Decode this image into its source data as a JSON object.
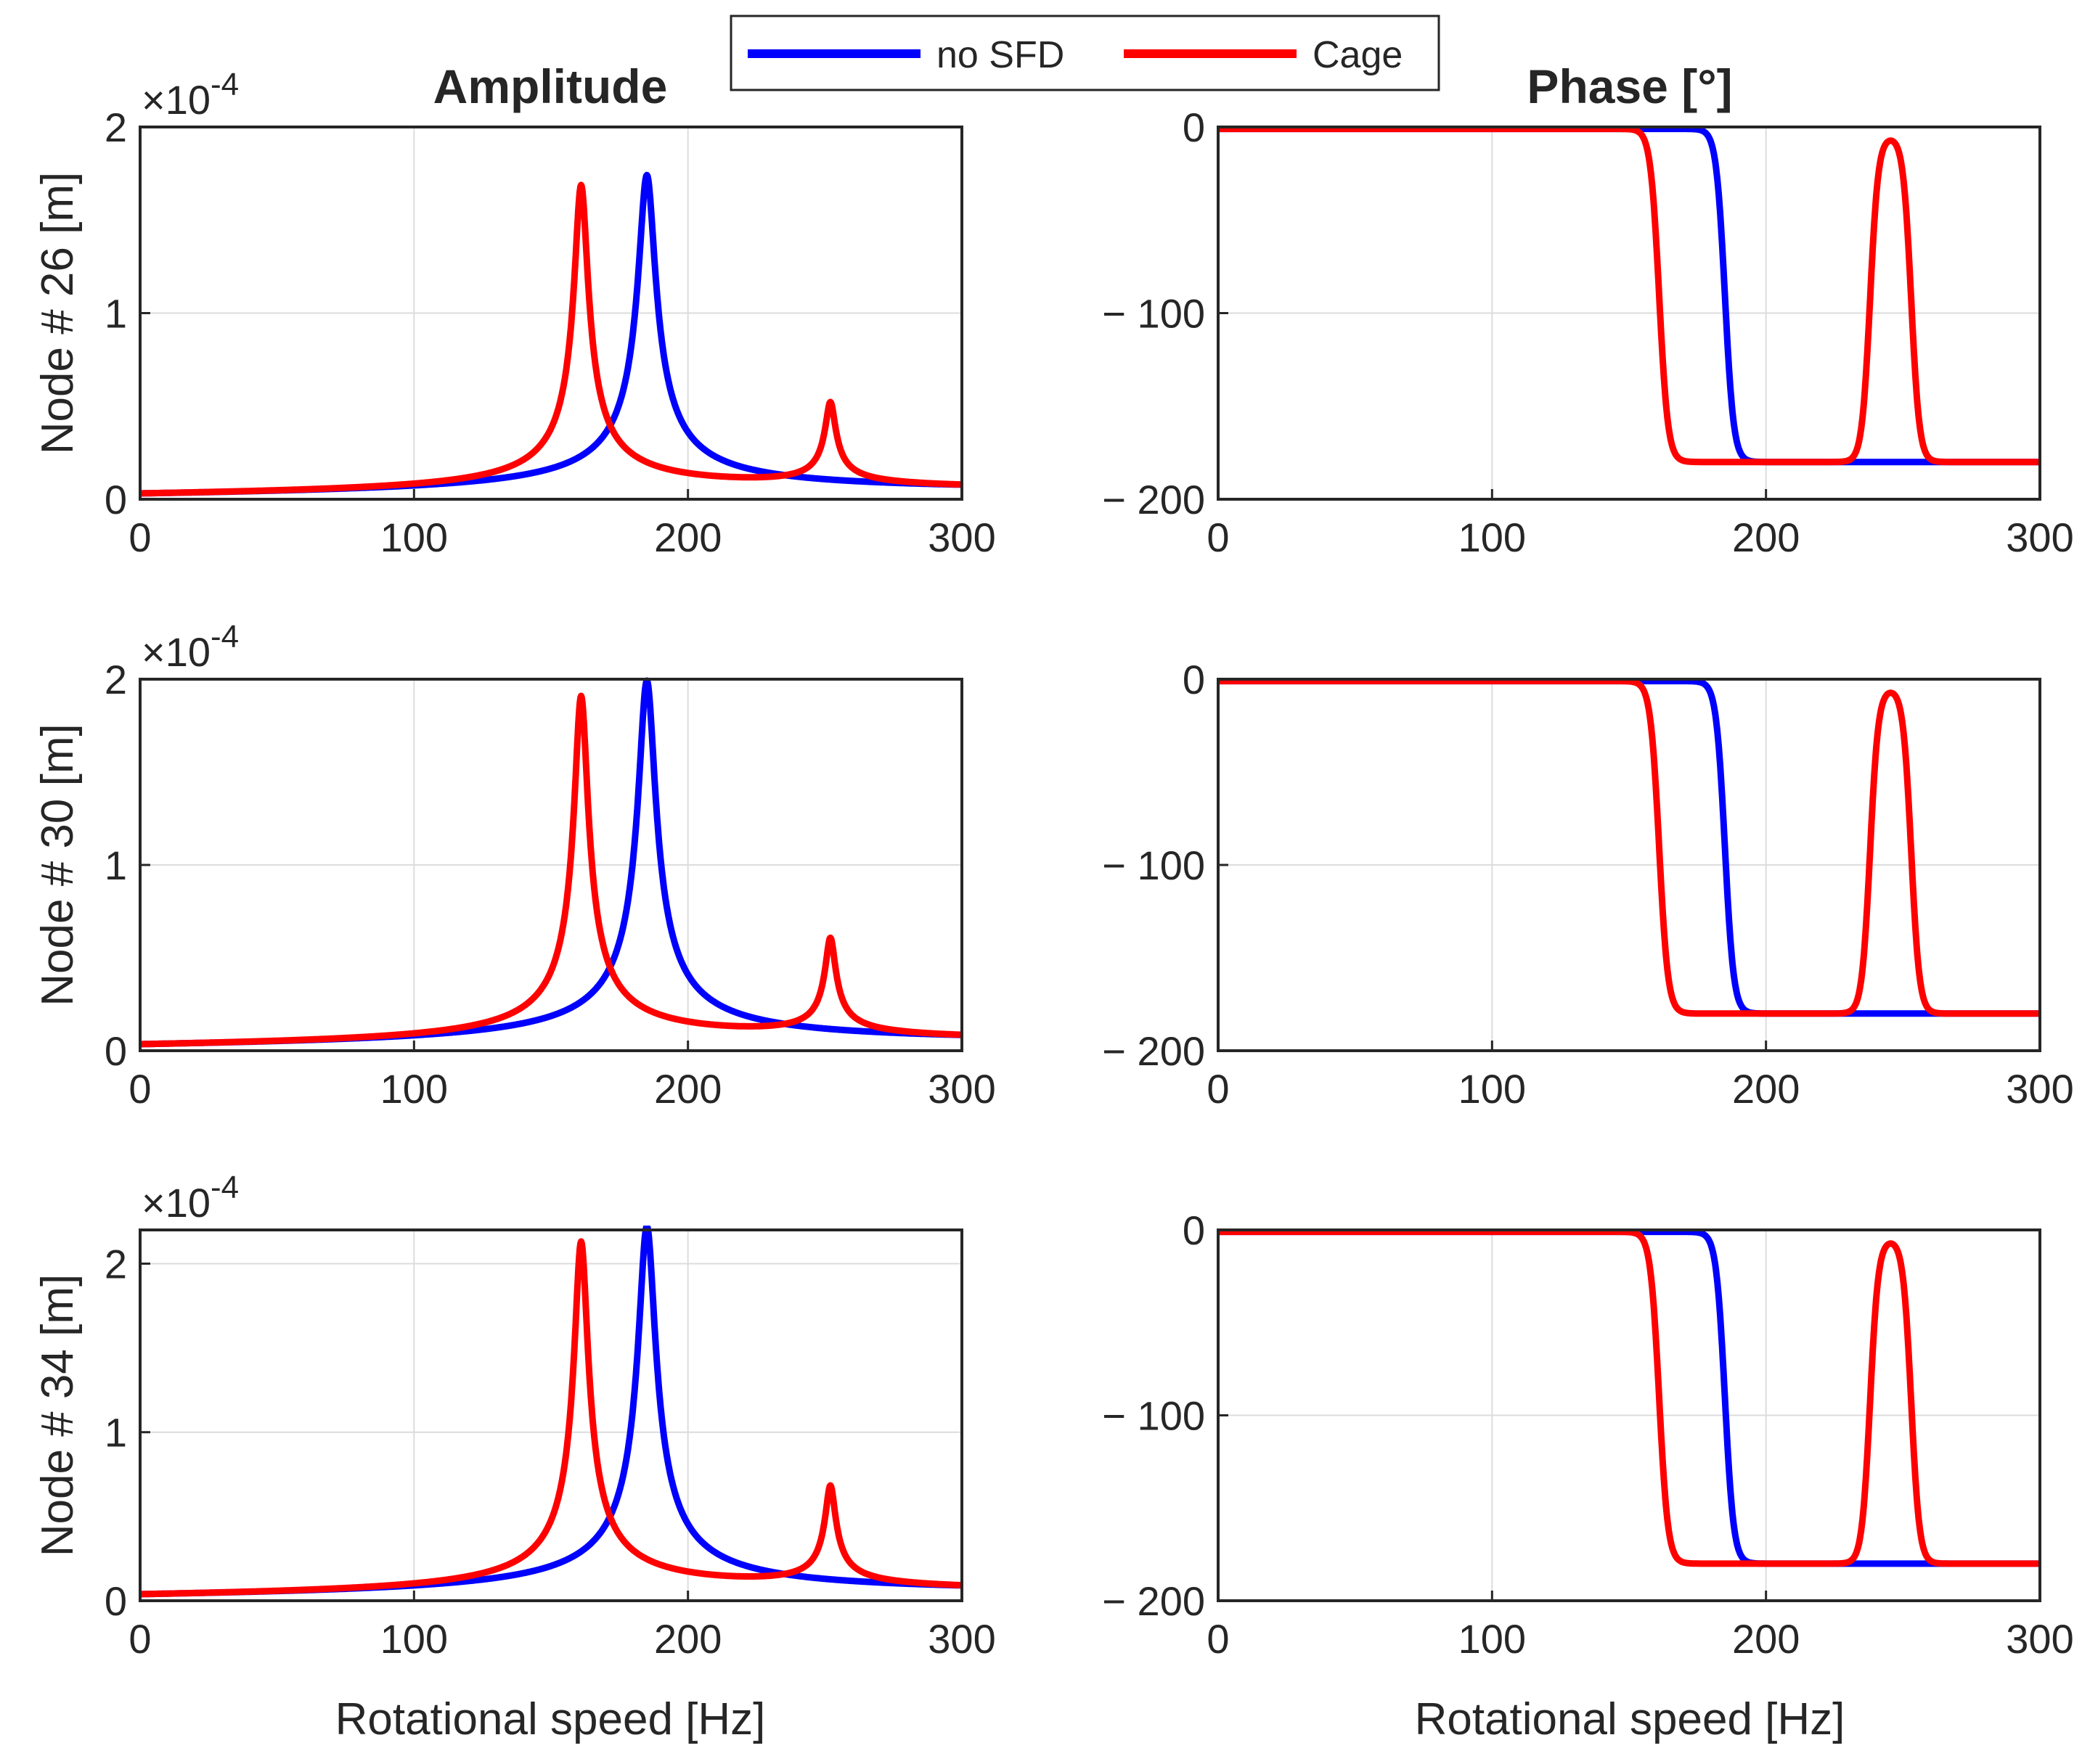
{
  "figure": {
    "column_titles": {
      "amplitude": "Amplitude",
      "phase": "Phase [°]"
    },
    "x_label": "Rotational speed [Hz]",
    "legend": [
      {
        "label": "no SFD",
        "color": "#0000ff"
      },
      {
        "label": "Cage",
        "color": "#ff0000"
      }
    ],
    "colors": {
      "axis": "#262626",
      "grid": "#dcdcdc",
      "no_sfd": "#0000ff",
      "cage": "#ff0000"
    }
  },
  "chart_data": [
    {
      "type": "line",
      "id": "amp-26",
      "title": "Amplitude",
      "xlabel": "",
      "ylabel": "Node # 26 [m]",
      "xlim": [
        0,
        300
      ],
      "ylim": [
        0,
        2
      ],
      "y_exponent_label": "×10^-4",
      "xticks": [
        0,
        100,
        200,
        300
      ],
      "yticks": [
        0,
        1,
        2
      ],
      "grid": true,
      "series": [
        {
          "name": "no SFD",
          "color": "#0000ff",
          "shape": "amp",
          "peaks": [
            {
              "f": 185,
              "value": 1.72,
              "width": 3.0
            }
          ]
        },
        {
          "name": "Cage",
          "color": "#ff0000",
          "shape": "amp",
          "peaks": [
            {
              "f": 161,
              "value": 1.66,
              "width": 2.4
            },
            {
              "f": 252,
              "value": 0.45,
              "width": 1.8
            }
          ]
        }
      ]
    },
    {
      "type": "line",
      "id": "phase-26",
      "title": "Phase [°]",
      "xlabel": "",
      "ylabel": "",
      "xlim": [
        0,
        300
      ],
      "ylim": [
        -200,
        0
      ],
      "xticks": [
        0,
        100,
        200,
        300
      ],
      "yticks": [
        0,
        -100,
        -200
      ],
      "grid": true,
      "series": [
        {
          "name": "no SFD",
          "color": "#0000ff",
          "shape": "phase",
          "transitions": [
            {
              "f": 185,
              "width": 1.6
            }
          ],
          "final": -180
        },
        {
          "name": "Cage",
          "color": "#ff0000",
          "shape": "phase",
          "transitions": [
            {
              "f": 161,
              "width": 1.6
            }
          ],
          "final": -180,
          "bump": {
            "center": 245.5,
            "half_width": 7.5,
            "edge": 1.5,
            "top": -5
          }
        }
      ]
    },
    {
      "type": "line",
      "id": "amp-30",
      "title": "",
      "xlabel": "",
      "ylabel": "Node # 30 [m]",
      "xlim": [
        0,
        300
      ],
      "ylim": [
        0,
        2
      ],
      "y_exponent_label": "×10^-4",
      "xticks": [
        0,
        100,
        200,
        300
      ],
      "yticks": [
        0,
        1,
        2
      ],
      "grid": true,
      "series": [
        {
          "name": "no SFD",
          "color": "#0000ff",
          "shape": "amp",
          "peaks": [
            {
              "f": 185,
              "value": 1.97,
              "width": 3.0
            }
          ]
        },
        {
          "name": "Cage",
          "color": "#ff0000",
          "shape": "amp",
          "peaks": [
            {
              "f": 161,
              "value": 1.88,
              "width": 2.4
            },
            {
              "f": 252,
              "value": 0.53,
              "width": 1.8
            }
          ]
        }
      ]
    },
    {
      "type": "line",
      "id": "phase-30",
      "title": "",
      "xlabel": "",
      "ylabel": "",
      "xlim": [
        0,
        300
      ],
      "ylim": [
        -200,
        0
      ],
      "xticks": [
        0,
        100,
        200,
        300
      ],
      "yticks": [
        0,
        -100,
        -200
      ],
      "grid": true,
      "series": [
        {
          "name": "no SFD",
          "color": "#0000ff",
          "shape": "phase",
          "transitions": [
            {
              "f": 185,
              "width": 1.6
            }
          ],
          "final": -180
        },
        {
          "name": "Cage",
          "color": "#ff0000",
          "shape": "phase",
          "transitions": [
            {
              "f": 161,
              "width": 1.6
            }
          ],
          "final": -180,
          "bump": {
            "center": 245.5,
            "half_width": 7.5,
            "edge": 1.5,
            "top": -5
          }
        }
      ]
    },
    {
      "type": "line",
      "id": "amp-34",
      "title": "",
      "xlabel": "Rotational speed [Hz]",
      "ylabel": "Node # 34 [m]",
      "xlim": [
        0,
        300
      ],
      "ylim": [
        0,
        2.2
      ],
      "y_exponent_label": "×10^-4",
      "xticks": [
        0,
        100,
        200,
        300
      ],
      "yticks": [
        0,
        1,
        2
      ],
      "grid": true,
      "series": [
        {
          "name": "no SFD",
          "color": "#0000ff",
          "shape": "amp",
          "peaks": [
            {
              "f": 185,
              "value": 2.2,
              "width": 3.0
            }
          ]
        },
        {
          "name": "Cage",
          "color": "#ff0000",
          "shape": "amp",
          "peaks": [
            {
              "f": 161,
              "value": 2.1,
              "width": 2.4
            },
            {
              "f": 252,
              "value": 0.6,
              "width": 1.8
            }
          ]
        }
      ]
    },
    {
      "type": "line",
      "id": "phase-34",
      "title": "",
      "xlabel": "Rotational speed [Hz]",
      "ylabel": "",
      "xlim": [
        0,
        300
      ],
      "ylim": [
        -200,
        0
      ],
      "xticks": [
        0,
        100,
        200,
        300
      ],
      "yticks": [
        0,
        -100,
        -200
      ],
      "grid": true,
      "series": [
        {
          "name": "no SFD",
          "color": "#0000ff",
          "shape": "phase",
          "transitions": [
            {
              "f": 185,
              "width": 1.6
            }
          ],
          "final": -180
        },
        {
          "name": "Cage",
          "color": "#ff0000",
          "shape": "phase",
          "transitions": [
            {
              "f": 161,
              "width": 1.6
            }
          ],
          "final": -180,
          "bump": {
            "center": 245.5,
            "half_width": 7.5,
            "edge": 1.5,
            "top": -5
          }
        }
      ]
    }
  ]
}
